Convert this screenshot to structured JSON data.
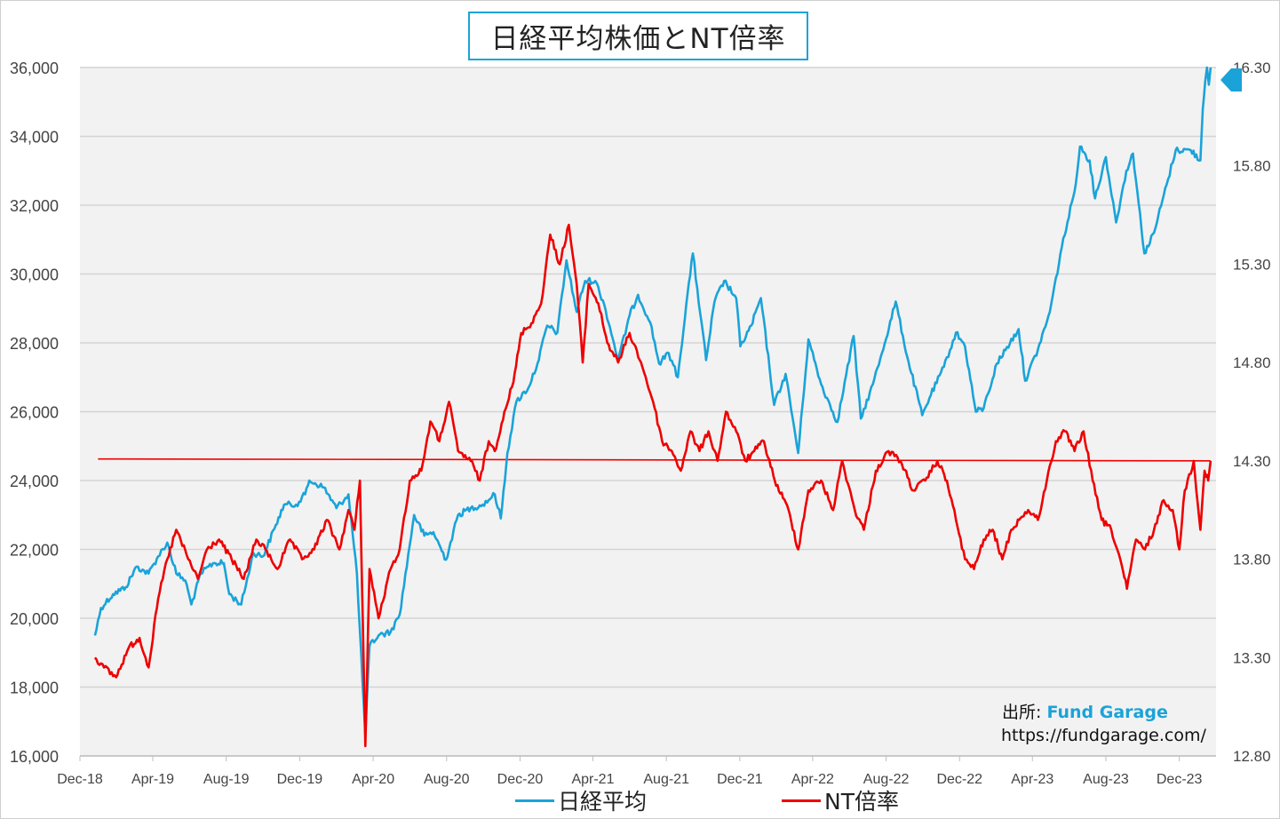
{
  "title": "日経平均株価とNT倍率",
  "source": {
    "label": "出所:",
    "brand": "Fund Garage",
    "url": "https://fundgarage.com/"
  },
  "legend": [
    {
      "name": "日経平均",
      "color": "#1aa3d9"
    },
    {
      "name": "NT倍率",
      "color": "#ee0000"
    }
  ],
  "chart_data": {
    "type": "line",
    "title": "日経平均株価とNT倍率",
    "x_ticks": [
      "Dec-18",
      "Apr-19",
      "Aug-19",
      "Dec-19",
      "Apr-20",
      "Aug-20",
      "Dec-20",
      "Apr-21",
      "Aug-21",
      "Dec-21",
      "Apr-22",
      "Aug-22",
      "Dec-22",
      "Apr-23",
      "Aug-23",
      "Dec-23"
    ],
    "y_left": {
      "min": 16000,
      "max": 36000,
      "ticks": [
        "16,000",
        "18,000",
        "20,000",
        "22,000",
        "24,000",
        "26,000",
        "28,000",
        "30,000",
        "32,000",
        "34,000",
        "36,000"
      ]
    },
    "y_right": {
      "min": 12.8,
      "max": 16.3,
      "ticks": [
        "12.80",
        "13.30",
        "13.80",
        "14.30",
        "14.80",
        "15.30",
        "15.80",
        "16.30"
      ]
    },
    "grid": true,
    "series": [
      {
        "name": "日経平均",
        "axis": "left",
        "color": "#1aa3d9",
        "points": [
          [
            "2018-12-26",
            19500
          ],
          [
            "2019-01-05",
            20300
          ],
          [
            "2019-01-25",
            20700
          ],
          [
            "2019-02-15",
            20900
          ],
          [
            "2019-03-05",
            21500
          ],
          [
            "2019-03-25",
            21300
          ],
          [
            "2019-04-10",
            21800
          ],
          [
            "2019-04-25",
            22200
          ],
          [
            "2019-05-10",
            21300
          ],
          [
            "2019-05-25",
            21100
          ],
          [
            "2019-06-04",
            20400
          ],
          [
            "2019-06-20",
            21300
          ],
          [
            "2019-07-10",
            21600
          ],
          [
            "2019-07-28",
            21600
          ],
          [
            "2019-08-06",
            20700
          ],
          [
            "2019-08-26",
            20400
          ],
          [
            "2019-09-15",
            21900
          ],
          [
            "2019-10-01",
            21800
          ],
          [
            "2019-10-20",
            22600
          ],
          [
            "2019-11-05",
            23300
          ],
          [
            "2019-11-25",
            23300
          ],
          [
            "2019-12-10",
            23600
          ],
          [
            "2019-12-17",
            24000
          ],
          [
            "2020-01-10",
            23800
          ],
          [
            "2020-01-31",
            23200
          ],
          [
            "2020-02-20",
            23600
          ],
          [
            "2020-03-05",
            21300
          ],
          [
            "2020-03-19",
            16600
          ],
          [
            "2020-03-26",
            19200
          ],
          [
            "2020-04-10",
            19500
          ],
          [
            "2020-04-30",
            19600
          ],
          [
            "2020-05-15",
            20100
          ],
          [
            "2020-06-08",
            23000
          ],
          [
            "2020-06-25",
            22400
          ],
          [
            "2020-07-10",
            22500
          ],
          [
            "2020-07-31",
            21700
          ],
          [
            "2020-08-20",
            23000
          ],
          [
            "2020-09-10",
            23200
          ],
          [
            "2020-09-30",
            23300
          ],
          [
            "2020-10-20",
            23600
          ],
          [
            "2020-10-30",
            22900
          ],
          [
            "2020-11-10",
            24800
          ],
          [
            "2020-11-25",
            26300
          ],
          [
            "2020-12-15",
            26700
          ],
          [
            "2020-12-30",
            27400
          ],
          [
            "2021-01-15",
            28500
          ],
          [
            "2021-02-01",
            28300
          ],
          [
            "2021-02-16",
            30400
          ],
          [
            "2021-03-05",
            28900
          ],
          [
            "2021-03-19",
            29800
          ],
          [
            "2021-04-05",
            29800
          ],
          [
            "2021-04-20",
            29100
          ],
          [
            "2021-05-13",
            27500
          ],
          [
            "2021-06-01",
            28800
          ],
          [
            "2021-06-15",
            29400
          ],
          [
            "2021-07-05",
            28600
          ],
          [
            "2021-07-20",
            27400
          ],
          [
            "2021-08-05",
            27700
          ],
          [
            "2021-08-20",
            27000
          ],
          [
            "2021-09-03",
            29100
          ],
          [
            "2021-09-14",
            30600
          ],
          [
            "2021-10-06",
            27500
          ],
          [
            "2021-10-20",
            29200
          ],
          [
            "2021-11-05",
            29800
          ],
          [
            "2021-11-25",
            29300
          ],
          [
            "2021-12-02",
            27900
          ],
          [
            "2021-12-20",
            28500
          ],
          [
            "2022-01-05",
            29300
          ],
          [
            "2022-01-27",
            26200
          ],
          [
            "2022-02-15",
            27100
          ],
          [
            "2022-03-08",
            24800
          ],
          [
            "2022-03-25",
            28100
          ],
          [
            "2022-04-15",
            26800
          ],
          [
            "2022-05-12",
            25700
          ],
          [
            "2022-06-08",
            28200
          ],
          [
            "2022-06-20",
            25800
          ],
          [
            "2022-07-10",
            26800
          ],
          [
            "2022-07-25",
            27700
          ],
          [
            "2022-08-17",
            29200
          ],
          [
            "2022-09-05",
            27600
          ],
          [
            "2022-09-30",
            25900
          ],
          [
            "2022-10-12",
            26400
          ],
          [
            "2022-11-05",
            27300
          ],
          [
            "2022-11-25",
            28300
          ],
          [
            "2022-12-10",
            27900
          ],
          [
            "2022-12-28",
            26000
          ],
          [
            "2023-01-10",
            26100
          ],
          [
            "2023-02-01",
            27400
          ],
          [
            "2023-03-09",
            28400
          ],
          [
            "2023-03-20",
            26900
          ],
          [
            "2023-04-10",
            27800
          ],
          [
            "2023-04-30",
            28900
          ],
          [
            "2023-05-20",
            30800
          ],
          [
            "2023-06-10",
            32400
          ],
          [
            "2023-06-19",
            33700
          ],
          [
            "2023-07-05",
            33300
          ],
          [
            "2023-07-14",
            32200
          ],
          [
            "2023-08-01",
            33400
          ],
          [
            "2023-08-18",
            31500
          ],
          [
            "2023-09-04",
            33000
          ],
          [
            "2023-09-15",
            33500
          ],
          [
            "2023-10-04",
            30600
          ],
          [
            "2023-10-20",
            31200
          ],
          [
            "2023-11-10",
            32600
          ],
          [
            "2023-11-25",
            33600
          ],
          [
            "2023-12-20",
            33600
          ],
          [
            "2024-01-05",
            33300
          ],
          [
            "2024-01-09",
            34800
          ],
          [
            "2024-01-13",
            35600
          ],
          [
            "2024-01-16",
            36000
          ],
          [
            "2024-01-19",
            35500
          ],
          [
            "2024-01-22",
            36000
          ]
        ]
      },
      {
        "name": "NT倍率",
        "axis": "right",
        "color": "#ee0000",
        "points": [
          [
            "2018-12-26",
            13.3
          ],
          [
            "2019-01-10",
            13.25
          ],
          [
            "2019-01-30",
            13.2
          ],
          [
            "2019-02-20",
            13.35
          ],
          [
            "2019-03-10",
            13.4
          ],
          [
            "2019-03-25",
            13.25
          ],
          [
            "2019-04-10",
            13.6
          ],
          [
            "2019-04-25",
            13.8
          ],
          [
            "2019-05-10",
            13.95
          ],
          [
            "2019-05-30",
            13.8
          ],
          [
            "2019-06-15",
            13.7
          ],
          [
            "2019-06-30",
            13.85
          ],
          [
            "2019-07-20",
            13.9
          ],
          [
            "2019-08-10",
            13.8
          ],
          [
            "2019-08-30",
            13.7
          ],
          [
            "2019-09-20",
            13.9
          ],
          [
            "2019-10-05",
            13.85
          ],
          [
            "2019-10-25",
            13.75
          ],
          [
            "2019-11-15",
            13.9
          ],
          [
            "2019-12-05",
            13.8
          ],
          [
            "2019-12-25",
            13.85
          ],
          [
            "2020-01-15",
            14.0
          ],
          [
            "2020-02-05",
            13.85
          ],
          [
            "2020-02-20",
            14.05
          ],
          [
            "2020-03-01",
            13.95
          ],
          [
            "2020-03-10",
            14.2
          ],
          [
            "2020-03-19",
            12.85
          ],
          [
            "2020-03-26",
            13.75
          ],
          [
            "2020-04-10",
            13.5
          ],
          [
            "2020-04-30",
            13.75
          ],
          [
            "2020-05-15",
            13.85
          ],
          [
            "2020-06-01",
            14.2
          ],
          [
            "2020-06-20",
            14.25
          ],
          [
            "2020-07-05",
            14.5
          ],
          [
            "2020-07-20",
            14.4
          ],
          [
            "2020-08-05",
            14.6
          ],
          [
            "2020-08-20",
            14.35
          ],
          [
            "2020-09-10",
            14.3
          ],
          [
            "2020-09-25",
            14.2
          ],
          [
            "2020-10-10",
            14.4
          ],
          [
            "2020-10-20",
            14.35
          ],
          [
            "2020-11-05",
            14.55
          ],
          [
            "2020-11-20",
            14.7
          ],
          [
            "2020-12-03",
            14.95
          ],
          [
            "2020-12-20",
            15.0
          ],
          [
            "2021-01-05",
            15.1
          ],
          [
            "2021-01-20",
            15.45
          ],
          [
            "2021-02-05",
            15.3
          ],
          [
            "2021-02-20",
            15.5
          ],
          [
            "2021-03-05",
            15.2
          ],
          [
            "2021-03-15",
            14.8
          ],
          [
            "2021-03-25",
            15.2
          ],
          [
            "2021-04-10",
            15.1
          ],
          [
            "2021-04-25",
            14.9
          ],
          [
            "2021-05-13",
            14.8
          ],
          [
            "2021-06-01",
            14.95
          ],
          [
            "2021-06-20",
            14.8
          ],
          [
            "2021-07-10",
            14.6
          ],
          [
            "2021-07-25",
            14.4
          ],
          [
            "2021-08-10",
            14.35
          ],
          [
            "2021-08-25",
            14.25
          ],
          [
            "2021-09-10",
            14.45
          ],
          [
            "2021-09-25",
            14.35
          ],
          [
            "2021-10-10",
            14.45
          ],
          [
            "2021-10-25",
            14.3
          ],
          [
            "2021-11-08",
            14.55
          ],
          [
            "2021-11-25",
            14.45
          ],
          [
            "2021-12-10",
            14.3
          ],
          [
            "2021-12-25",
            14.35
          ],
          [
            "2022-01-10",
            14.4
          ],
          [
            "2022-01-28",
            14.2
          ],
          [
            "2022-02-20",
            14.05
          ],
          [
            "2022-03-08",
            13.85
          ],
          [
            "2022-03-25",
            14.15
          ],
          [
            "2022-04-15",
            14.2
          ],
          [
            "2022-05-05",
            14.05
          ],
          [
            "2022-05-20",
            14.3
          ],
          [
            "2022-06-10",
            14.05
          ],
          [
            "2022-06-25",
            13.95
          ],
          [
            "2022-07-15",
            14.25
          ],
          [
            "2022-08-05",
            14.35
          ],
          [
            "2022-08-25",
            14.3
          ],
          [
            "2022-09-15",
            14.15
          ],
          [
            "2022-10-05",
            14.2
          ],
          [
            "2022-10-25",
            14.3
          ],
          [
            "2022-11-10",
            14.2
          ],
          [
            "2022-11-25",
            14.0
          ],
          [
            "2022-12-10",
            13.8
          ],
          [
            "2022-12-25",
            13.75
          ],
          [
            "2023-01-10",
            13.9
          ],
          [
            "2023-01-25",
            13.95
          ],
          [
            "2023-02-10",
            13.8
          ],
          [
            "2023-02-25",
            13.95
          ],
          [
            "2023-03-10",
            14.0
          ],
          [
            "2023-03-25",
            14.05
          ],
          [
            "2023-04-10",
            14.0
          ],
          [
            "2023-04-25",
            14.2
          ],
          [
            "2023-05-10",
            14.4
          ],
          [
            "2023-05-25",
            14.45
          ],
          [
            "2023-06-10",
            14.35
          ],
          [
            "2023-06-25",
            14.45
          ],
          [
            "2023-07-10",
            14.2
          ],
          [
            "2023-07-25",
            14.0
          ],
          [
            "2023-08-10",
            13.95
          ],
          [
            "2023-08-25",
            13.8
          ],
          [
            "2023-09-05",
            13.65
          ],
          [
            "2023-09-20",
            13.9
          ],
          [
            "2023-10-05",
            13.85
          ],
          [
            "2023-10-20",
            13.95
          ],
          [
            "2023-11-05",
            14.1
          ],
          [
            "2023-11-20",
            14.05
          ],
          [
            "2023-12-01",
            13.85
          ],
          [
            "2023-12-10",
            14.15
          ],
          [
            "2023-12-25",
            14.3
          ],
          [
            "2024-01-05",
            13.95
          ],
          [
            "2024-01-12",
            14.25
          ],
          [
            "2024-01-18",
            14.2
          ],
          [
            "2024-01-22",
            14.3
          ]
        ]
      }
    ],
    "reference_line": {
      "axis": "right",
      "color": "#ee0000",
      "from": [
        "2018-12-31",
        14.31
      ],
      "to": [
        "2024-01-22",
        14.3
      ]
    },
    "marker": {
      "axis": "right",
      "value": 16.3,
      "color": "#1aa3d9"
    }
  }
}
